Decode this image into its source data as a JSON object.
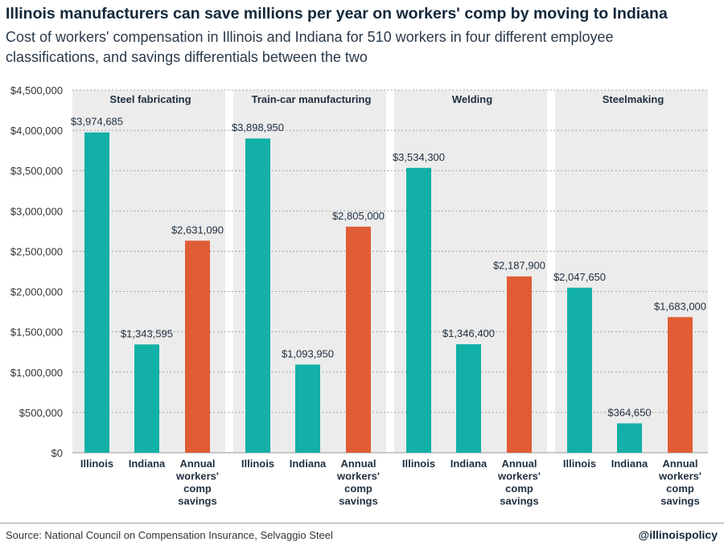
{
  "title": "Illinois manufacturers can save millions per year on workers' comp by moving to Indiana",
  "subtitle": "Cost of workers' compensation in Illinois and Indiana for 510 workers in four different employee classifications, and savings differentials between the two",
  "source": "Source: National Council on Compensation Insurance, Selvaggio Steel",
  "handle": "@illinoispolicy",
  "colors": {
    "illinois": "#12b0a6",
    "indiana": "#12b0a6",
    "savings": "#e05c35",
    "panel": "#ececec"
  },
  "chart_data": {
    "type": "bar",
    "title": "Illinois manufacturers can save millions per year on workers' comp by moving to Indiana",
    "subtitle": "Cost of workers' compensation in Illinois and Indiana for 510 workers in four different employee classifications, and savings differentials between the two",
    "ylim": [
      0,
      4500000
    ],
    "yticks": [
      0,
      500000,
      1000000,
      1500000,
      2000000,
      2500000,
      3000000,
      3500000,
      4000000,
      4500000
    ],
    "ytick_labels": [
      "$0",
      "$500,000",
      "$1,000,000",
      "$1,500,000",
      "$2,000,000",
      "$2,500,000",
      "$3,000,000",
      "$3,500,000",
      "$4,000,000",
      "$4,500,000"
    ],
    "grid": true,
    "groups": [
      {
        "name": "Steel fabricating",
        "bars": [
          {
            "category": "Illinois",
            "value": 3974685,
            "label": "$3,974,685"
          },
          {
            "category": "Indiana",
            "value": 1343595,
            "label": "$1,343,595"
          },
          {
            "category": "Annual workers' comp savings",
            "value": 2631090,
            "label": "$2,631,090"
          }
        ]
      },
      {
        "name": "Train-car manufacturing",
        "bars": [
          {
            "category": "Illinois",
            "value": 3898950,
            "label": "$3,898,950"
          },
          {
            "category": "Indiana",
            "value": 1093950,
            "label": "$1,093,950"
          },
          {
            "category": "Annual workers' comp savings",
            "value": 2805000,
            "label": "$2,805,000"
          }
        ]
      },
      {
        "name": "Welding",
        "bars": [
          {
            "category": "Illinois",
            "value": 3534300,
            "label": "$3,534,300"
          },
          {
            "category": "Indiana",
            "value": 1346400,
            "label": "$1,346,400"
          },
          {
            "category": "Annual workers' comp savings",
            "value": 2187900,
            "label": "$2,187,900"
          }
        ]
      },
      {
        "name": "Steelmaking",
        "bars": [
          {
            "category": "Illinois",
            "value": 2047650,
            "label": "$2,047,650"
          },
          {
            "category": "Indiana",
            "value": 364650,
            "label": "$364,650"
          },
          {
            "category": "Annual workers' comp savings",
            "value": 1683000,
            "label": "$1,683,000"
          }
        ]
      }
    ]
  }
}
